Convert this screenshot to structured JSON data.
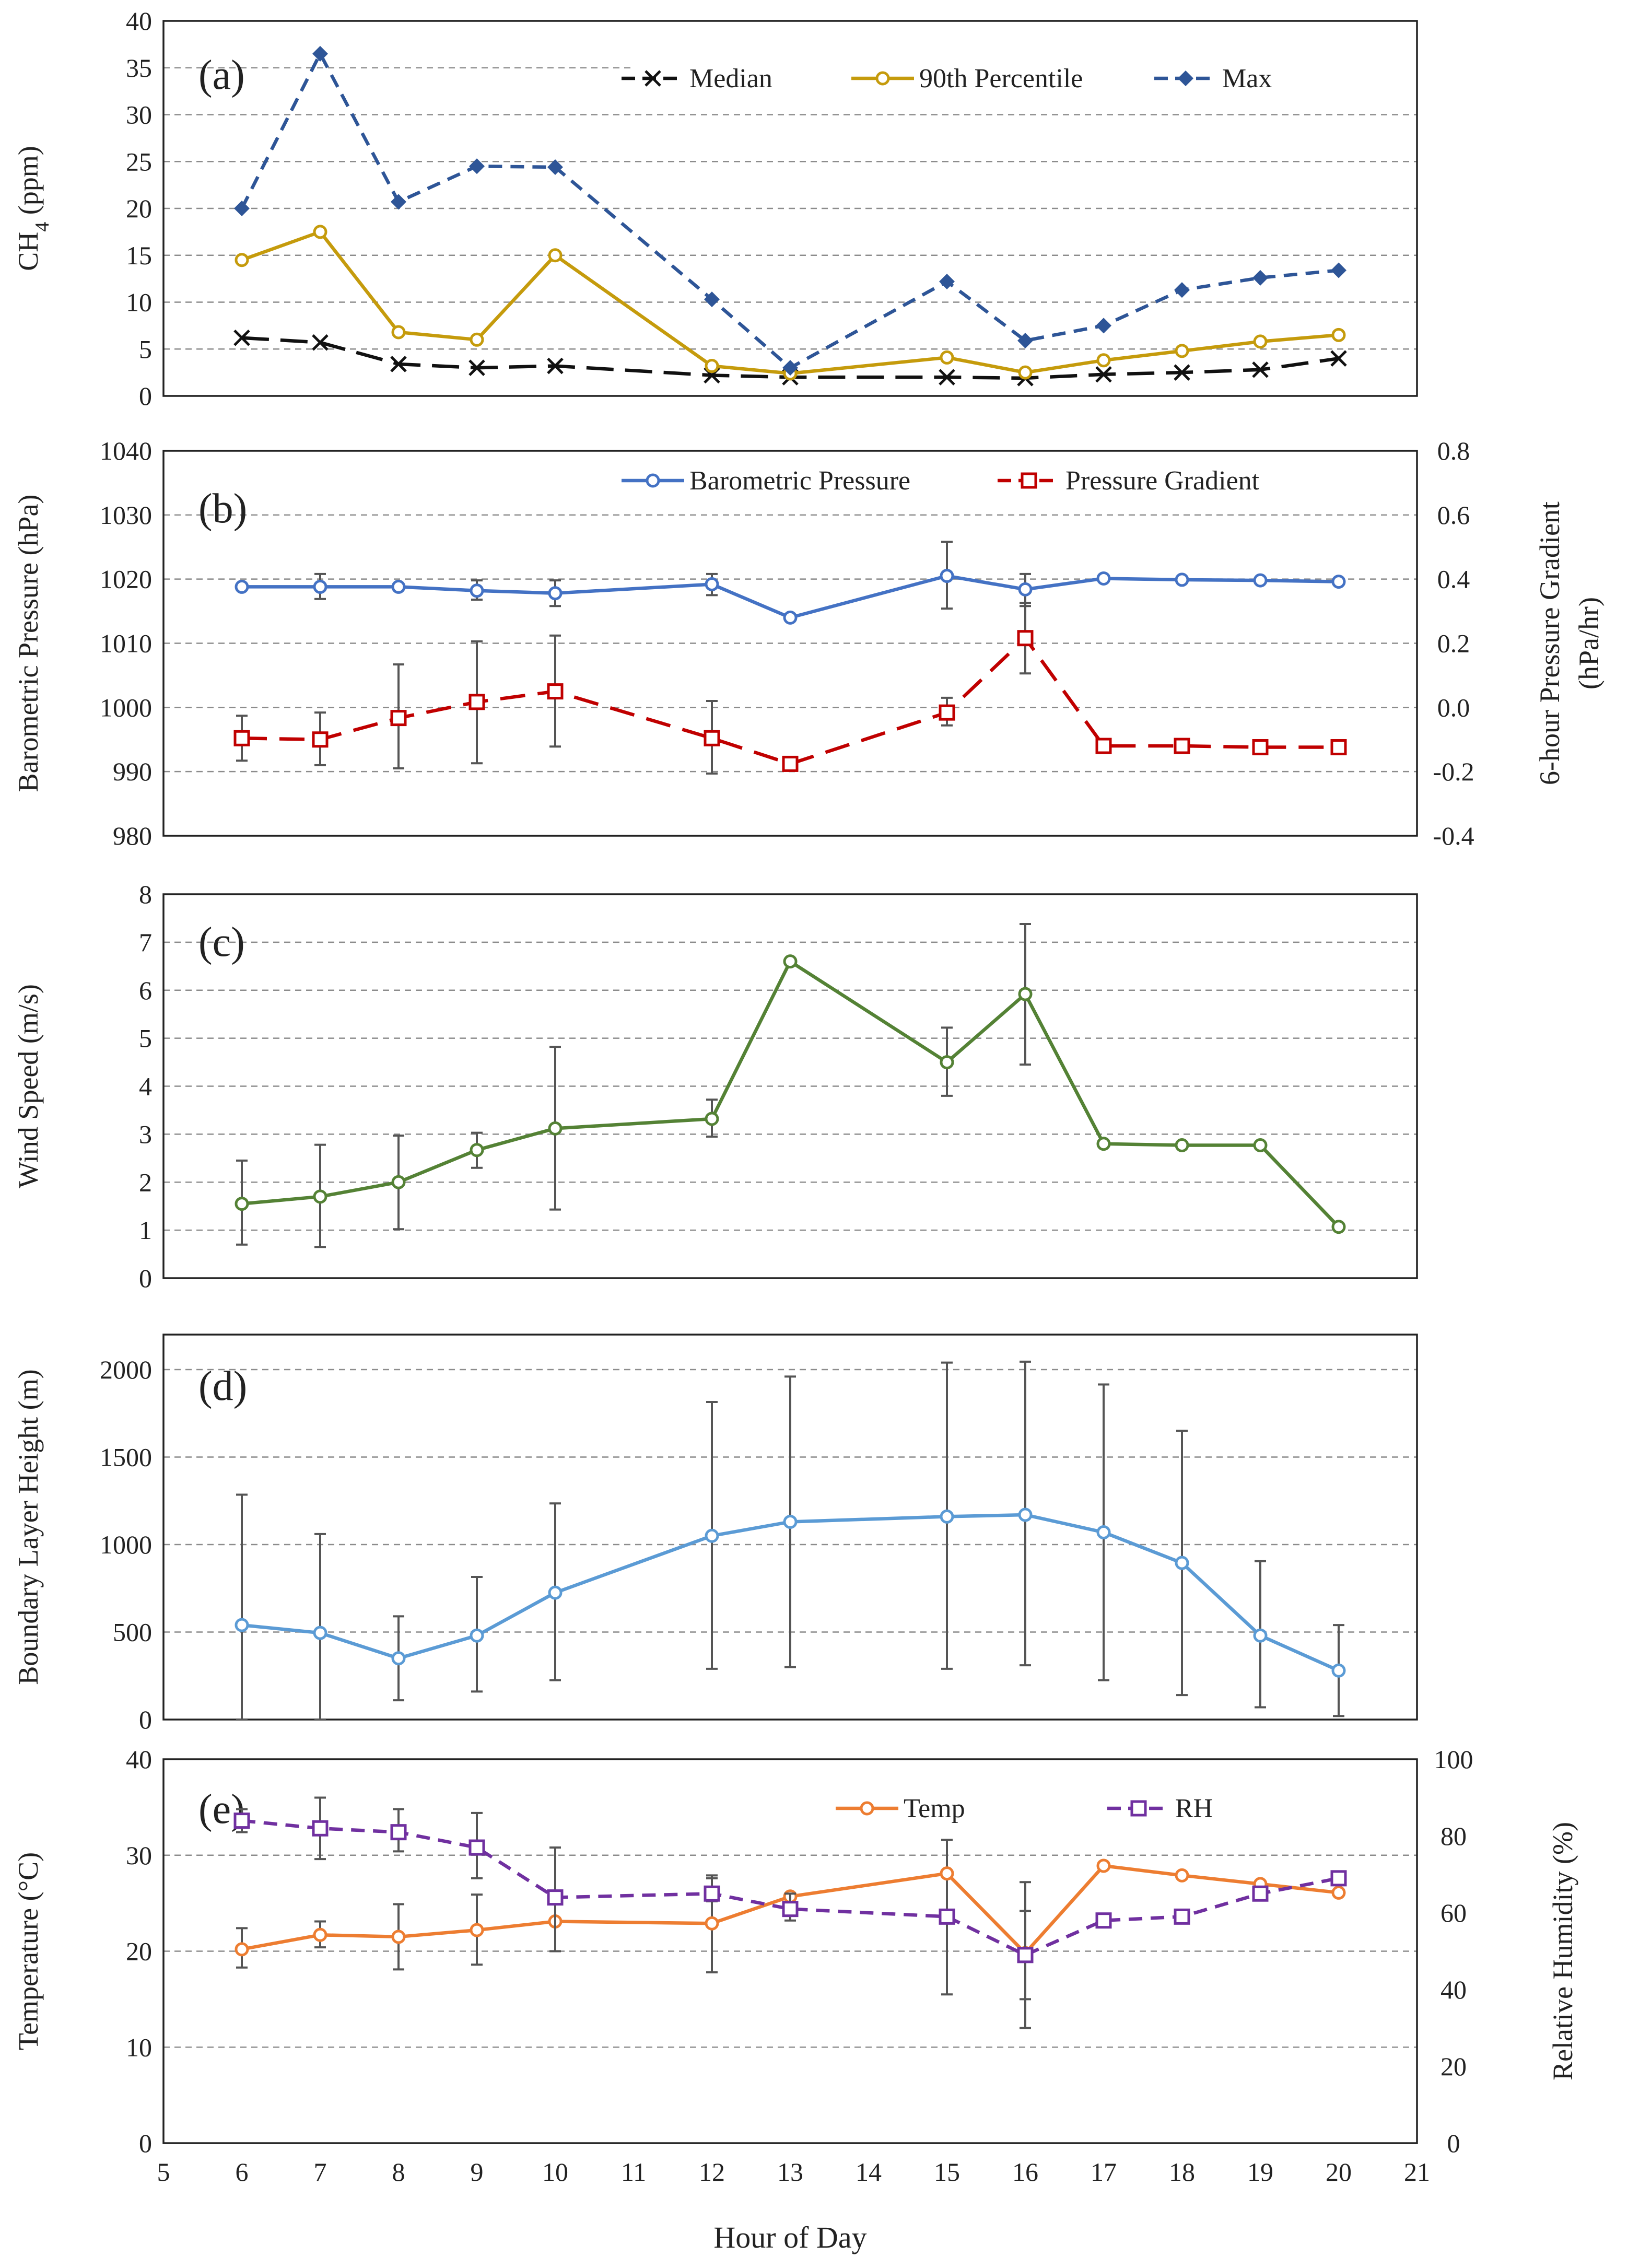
{
  "chart_data": [
    {
      "id": "a",
      "type": "line",
      "panel_label": "(a)",
      "ylabel": "CH4 (ppm)",
      "ylabel_main": "CH",
      "ylabel_sub": "4",
      "ylabel_rest": " (ppm)",
      "ylim": [
        0,
        40
      ],
      "yticks": [
        0,
        5,
        10,
        15,
        20,
        25,
        30,
        35,
        40
      ],
      "x": [
        6,
        7,
        8,
        9,
        10,
        12,
        13,
        15,
        16,
        17,
        18,
        19,
        20
      ],
      "series": [
        {
          "name": "Median",
          "marker": "x",
          "dash": "long",
          "color": "#111111",
          "values": [
            6.2,
            5.7,
            3.4,
            3.0,
            3.2,
            2.2,
            2.0,
            2.0,
            1.9,
            2.3,
            2.5,
            2.8,
            4.0
          ]
        },
        {
          "name": "90th Percentile",
          "marker": "circle",
          "dash": "solid",
          "color": "#C59B0C",
          "values": [
            14.5,
            17.5,
            6.8,
            6.0,
            15.0,
            3.2,
            2.4,
            4.1,
            2.5,
            3.8,
            4.8,
            5.8,
            6.5
          ]
        },
        {
          "name": "Max",
          "marker": "diamond",
          "dash": "dash",
          "color": "#2E5597",
          "values": [
            20.0,
            36.5,
            20.7,
            24.5,
            24.4,
            10.3,
            3.0,
            12.2,
            5.9,
            7.5,
            11.3,
            12.6,
            13.4
          ]
        }
      ]
    },
    {
      "id": "b",
      "type": "line",
      "panel_label": "(b)",
      "ylabel": "Barometric Pressure (hPa)",
      "y2label_line1": "6-hour Pressure Gradient",
      "y2label_line2": "(hPa/hr)",
      "ylim": [
        980,
        1040
      ],
      "yticks": [
        980,
        990,
        1000,
        1010,
        1020,
        1030,
        1040
      ],
      "y2lim": [
        -0.4,
        0.8
      ],
      "y2ticks": [
        "-0.4",
        "-0.2",
        "0.0",
        "0.2",
        "0.4",
        "0.6",
        "0.8"
      ],
      "x": [
        6,
        7,
        8,
        9,
        10,
        12,
        13,
        15,
        16,
        17,
        18,
        19,
        20
      ],
      "series": [
        {
          "name": "Barometric Pressure",
          "marker": "circle",
          "dash": "solid",
          "color": "#4472C4",
          "axis": "left",
          "values": [
            1018.8,
            1018.8,
            1018.8,
            1018.2,
            1017.8,
            1019.2,
            1014.0,
            1020.5,
            1018.4,
            1020.1,
            1019.9,
            1019.8,
            1019.6
          ],
          "err_low": [
            1018.8,
            1016.9,
            1018.8,
            1016.8,
            1015.8,
            1017.5,
            1014.0,
            1015.4,
            1015.8,
            1020.1,
            1019.9,
            1019.8,
            1019.6
          ],
          "err_high": [
            1018.8,
            1020.8,
            1018.8,
            1019.8,
            1019.8,
            1020.8,
            1014.0,
            1025.8,
            1020.8,
            1020.1,
            1019.9,
            1019.8,
            1019.6
          ]
        },
        {
          "name": "Pressure Gradient",
          "marker": "square",
          "dash": "longdash",
          "color": "#C00000",
          "axis": "right",
          "values": [
            -0.096,
            -0.1,
            -0.033,
            0.017,
            0.05,
            -0.096,
            -0.176,
            -0.016,
            0.216,
            -0.12,
            -0.12,
            -0.124,
            -0.124
          ],
          "err_low": [
            -0.166,
            -0.18,
            -0.19,
            -0.174,
            -0.122,
            -0.206,
            -0.176,
            -0.056,
            0.106,
            -0.12,
            -0.12,
            -0.124,
            -0.124
          ],
          "err_high": [
            -0.026,
            -0.016,
            0.134,
            0.206,
            0.224,
            0.02,
            -0.176,
            0.03,
            0.326,
            -0.12,
            -0.12,
            -0.124,
            -0.124
          ]
        }
      ]
    },
    {
      "id": "c",
      "type": "line",
      "panel_label": "(c)",
      "ylabel": "Wind Speed (m/s)",
      "ylim": [
        0,
        8
      ],
      "yticks": [
        0,
        1,
        2,
        3,
        4,
        5,
        6,
        7,
        8
      ],
      "x": [
        6,
        7,
        8,
        9,
        10,
        12,
        13,
        15,
        16,
        17,
        18,
        19,
        20
      ],
      "series": [
        {
          "name": "Wind Speed",
          "marker": "circle",
          "dash": "solid",
          "color": "#548235",
          "values": [
            1.55,
            1.7,
            2.0,
            2.67,
            3.12,
            3.32,
            6.6,
            4.5,
            5.92,
            2.8,
            2.77,
            2.77,
            1.07
          ],
          "err_low": [
            0.7,
            0.65,
            1.02,
            2.3,
            1.43,
            2.95,
            6.6,
            3.8,
            4.45,
            2.8,
            2.77,
            2.77,
            1.07
          ],
          "err_high": [
            2.45,
            2.78,
            2.97,
            3.03,
            4.82,
            3.72,
            6.6,
            5.22,
            7.38,
            2.8,
            2.77,
            2.77,
            1.07
          ]
        }
      ]
    },
    {
      "id": "d",
      "type": "line",
      "panel_label": "(d)",
      "ylabel": "Boundary Layer Height (m)",
      "ylim": [
        0,
        2200
      ],
      "yticks": [
        0,
        500,
        1000,
        1500,
        2000
      ],
      "x": [
        6,
        7,
        8,
        9,
        10,
        12,
        13,
        15,
        16,
        17,
        18,
        19,
        20
      ],
      "series": [
        {
          "name": "Boundary Layer Height",
          "marker": "circle",
          "dash": "solid",
          "color": "#5B9BD5",
          "values": [
            540,
            495,
            350,
            480,
            725,
            1050,
            1130,
            1160,
            1170,
            1070,
            895,
            480,
            280
          ],
          "err_low": [
            0,
            0,
            110,
            160,
            225,
            290,
            300,
            290,
            310,
            225,
            140,
            70,
            20
          ],
          "err_high": [
            1285,
            1060,
            590,
            815,
            1235,
            1815,
            1960,
            2040,
            2045,
            1915,
            1650,
            905,
            540
          ]
        }
      ]
    },
    {
      "id": "e",
      "type": "line",
      "panel_label": "(e)",
      "ylabel": "Temperature (°C)",
      "y2label": "Relative Humidity (%)",
      "xlabel": "Hour of Day",
      "ylim": [
        0,
        40
      ],
      "yticks": [
        0,
        10,
        20,
        30,
        40
      ],
      "y2lim": [
        0,
        100
      ],
      "y2ticks": [
        0,
        20,
        40,
        60,
        80,
        100
      ],
      "xlim": [
        5,
        21
      ],
      "xticks": [
        5,
        6,
        7,
        8,
        9,
        10,
        11,
        12,
        13,
        14,
        15,
        16,
        17,
        18,
        19,
        20,
        21
      ],
      "x": [
        6,
        7,
        8,
        9,
        10,
        12,
        13,
        15,
        16,
        17,
        18,
        19,
        20
      ],
      "series": [
        {
          "name": "Temp",
          "marker": "circle",
          "dash": "solid",
          "color": "#ED7D31",
          "axis": "left",
          "values": [
            20.2,
            21.7,
            21.5,
            22.2,
            23.1,
            22.9,
            25.7,
            28.1,
            19.8,
            28.9,
            27.9,
            27.0,
            26.1
          ],
          "err_low": [
            18.3,
            20.4,
            18.1,
            18.6,
            20.0,
            17.8,
            25.7,
            15.5,
            15.0,
            28.9,
            27.9,
            27.0,
            26.1
          ],
          "err_high": [
            22.4,
            23.1,
            24.9,
            25.9,
            26.1,
            27.9,
            25.7,
            31.6,
            24.2,
            28.9,
            27.9,
            27.0,
            26.1
          ]
        },
        {
          "name": "RH",
          "marker": "square",
          "dash": "dash",
          "color": "#7030A0",
          "axis": "right",
          "values": [
            84,
            82,
            81,
            77,
            64,
            65,
            61,
            59,
            49,
            58,
            59,
            65,
            69
          ],
          "err_low": [
            81,
            74,
            76,
            69,
            50,
            63,
            58,
            59,
            30,
            58,
            59,
            65,
            69
          ],
          "err_high": [
            87,
            90,
            87,
            86,
            77,
            69,
            65,
            59,
            68,
            58,
            59,
            65,
            69
          ]
        }
      ]
    }
  ]
}
